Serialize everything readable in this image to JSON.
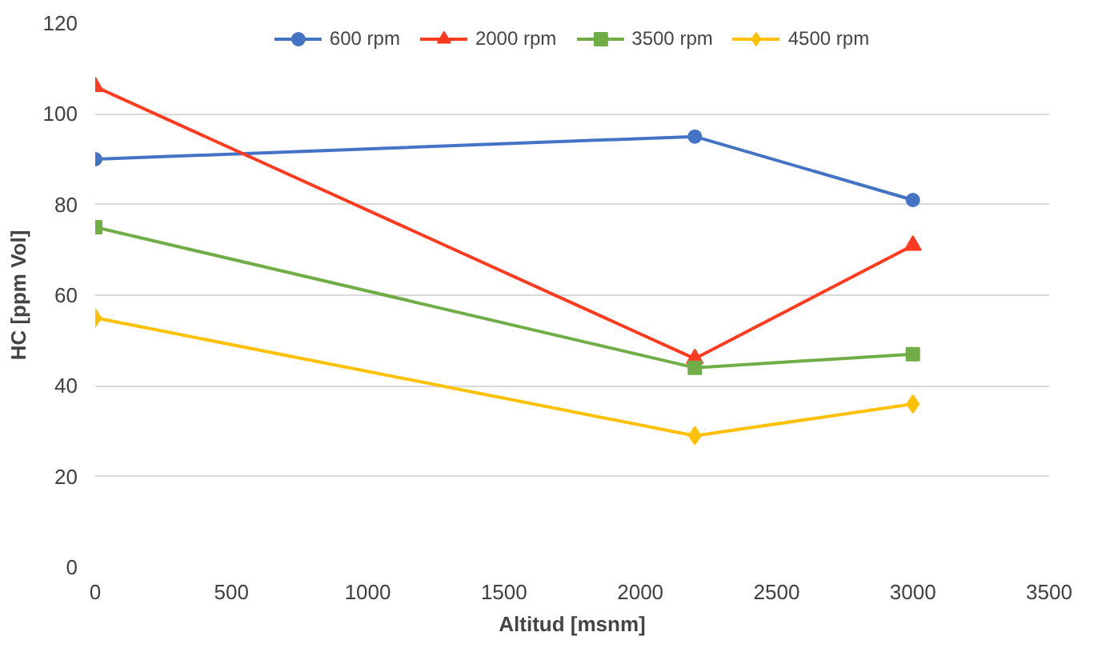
{
  "chart_data": {
    "type": "line",
    "xlabel": "Altitud [msnm]",
    "ylabel": "HC [ppm Vol]",
    "x": [
      0,
      2200,
      3000
    ],
    "xlim": [
      0,
      3500
    ],
    "xticks": [
      0,
      500,
      1000,
      1500,
      2000,
      2500,
      3000,
      3500
    ],
    "ylim": [
      0,
      120
    ],
    "yticks": [
      0,
      20,
      40,
      60,
      80,
      100,
      120
    ],
    "grid": "y",
    "legend": "top",
    "line_style": "solid",
    "series": [
      {
        "name": "600 rpm",
        "color": "#4472c4",
        "marker": "circle",
        "values": [
          90,
          95,
          81
        ]
      },
      {
        "name": "2000 rpm",
        "color": "#ff3b1f",
        "marker": "triangle",
        "values": [
          106,
          46,
          71
        ]
      },
      {
        "name": "3500 rpm",
        "color": "#70ad47",
        "marker": "square",
        "values": [
          75,
          44,
          47
        ]
      },
      {
        "name": "4500 rpm",
        "color": "#ffc000",
        "marker": "diamond",
        "values": [
          55,
          29,
          36
        ]
      }
    ]
  }
}
